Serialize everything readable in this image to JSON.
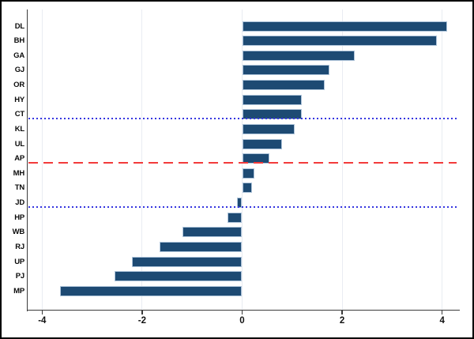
{
  "chart_data": {
    "type": "bar",
    "orientation": "horizontal",
    "title": "",
    "xlabel": "",
    "ylabel": "",
    "categories": [
      "DL",
      "BH",
      "GA",
      "GJ",
      "OR",
      "HY",
      "CT",
      "KL",
      "UL",
      "AP",
      "MH",
      "TN",
      "JD",
      "HP",
      "WB",
      "RJ",
      "UP",
      "PJ",
      "MP"
    ],
    "values": [
      4.1,
      3.9,
      2.25,
      1.75,
      1.65,
      1.2,
      1.2,
      1.05,
      0.8,
      0.55,
      0.25,
      0.2,
      -0.1,
      -0.3,
      -1.2,
      -1.65,
      -2.2,
      -2.55,
      -3.65
    ],
    "x_ticks": [
      -4,
      -2,
      0,
      2,
      4
    ],
    "x_tick_labels": [
      "-4",
      "-2",
      "0",
      "2",
      "4"
    ],
    "xlim": [
      -4.29,
      4.29
    ],
    "grid": "vertical-faint-at-ticks",
    "legend": "none",
    "reference_lines": [
      {
        "at_category": "CT",
        "style": "dotted",
        "color": "#3535e0"
      },
      {
        "at_category": "AP",
        "style": "dashed",
        "color": "#f23b3b"
      },
      {
        "at_category": "JD",
        "style": "dotted",
        "color": "#3535e0"
      }
    ],
    "colors": {
      "bar_fill": "#1d4a73",
      "bar_outline": "#aec4da",
      "axis": "#3c3c3c",
      "gridline": "#e9ecf2",
      "frame": "#000000",
      "background": "#ffffff"
    }
  }
}
